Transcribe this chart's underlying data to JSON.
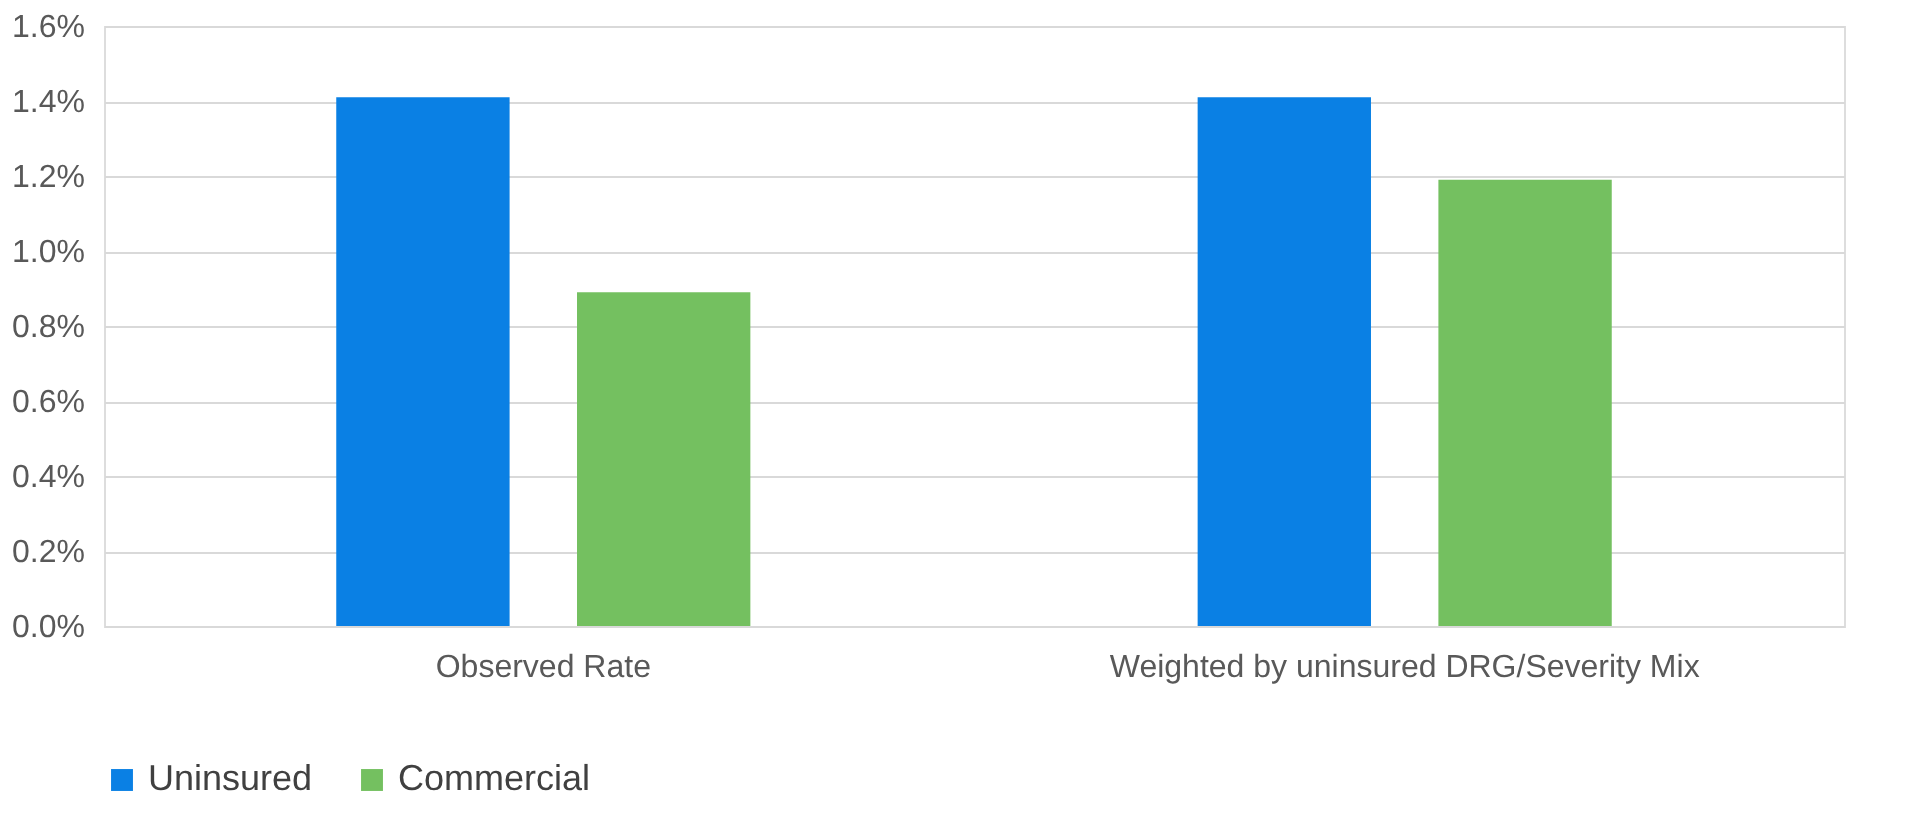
{
  "chart_data": {
    "type": "bar",
    "categories": [
      "Observed Rate",
      "Weighted by uninsured DRG/Severity Mix"
    ],
    "series": [
      {
        "name": "Uninsured",
        "color": "#0a80e4",
        "values": [
          1.41,
          1.41
        ]
      },
      {
        "name": "Commercial",
        "color": "#74c060",
        "values": [
          0.89,
          1.19
        ]
      }
    ],
    "ylim": [
      0,
      1.6
    ],
    "yticks": [
      {
        "value": 0,
        "label": "0.0%"
      },
      {
        "value": 0.2,
        "label": "0.2%"
      },
      {
        "value": 0.4,
        "label": "0.4%"
      },
      {
        "value": 0.6,
        "label": "0.6%"
      },
      {
        "value": 0.8,
        "label": "0.8%"
      },
      {
        "value": 1.0,
        "label": "1.0%"
      },
      {
        "value": 1.2,
        "label": "1.2%"
      },
      {
        "value": 1.4,
        "label": "1.4%"
      },
      {
        "value": 1.6,
        "label": "1.6%"
      }
    ],
    "grid": "y",
    "legend": "bottom"
  }
}
